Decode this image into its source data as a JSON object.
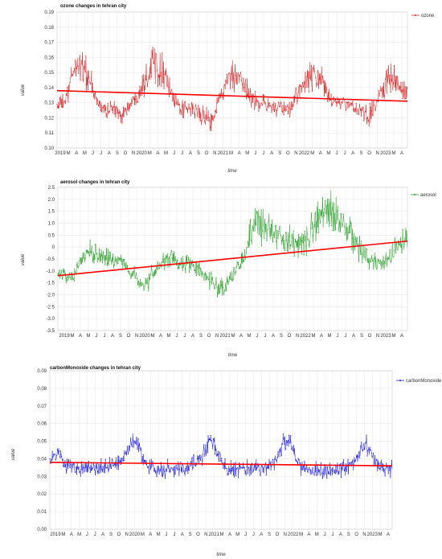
{
  "chart_data": [
    {
      "type": "line",
      "title": "ozone changes in tehran city",
      "xlabel": "time",
      "ylabel": "value",
      "legend": "top-right",
      "grid": true,
      "series": [
        {
          "name": "ozone",
          "color": "#d62728"
        }
      ],
      "ylim": [
        0.1,
        0.19
      ],
      "yticks": [
        "0.19",
        "0.18",
        "0.17",
        "0.16",
        "0.15",
        "0.14",
        "0.13",
        "0.12",
        "0.11",
        "0.10"
      ],
      "xticks": [
        "2019",
        "M",
        "A",
        "M",
        "J",
        "J",
        "A",
        "S",
        "O",
        "N",
        "2020",
        "M",
        "A",
        "M",
        "J",
        "J",
        "A",
        "S",
        "O",
        "N",
        "2021",
        "M",
        "A",
        "M",
        "J",
        "J",
        "A",
        "S",
        "O",
        "N",
        "2022",
        "M",
        "A",
        "M",
        "J",
        "J",
        "A",
        "S",
        "O",
        "N",
        "2023",
        "M",
        "A"
      ],
      "x_range": [
        "2018-12-01",
        "2023-05-15"
      ],
      "seasonal_profile": [
        [
          "2018-12-01",
          0.128
        ],
        [
          "2019-01-15",
          0.132
        ],
        [
          "2019-02-15",
          0.152
        ],
        [
          "2019-03-15",
          0.157
        ],
        [
          "2019-04-15",
          0.15
        ],
        [
          "2019-05-15",
          0.138
        ],
        [
          "2019-06-15",
          0.128
        ],
        [
          "2019-07-15",
          0.125
        ],
        [
          "2019-08-15",
          0.127
        ],
        [
          "2019-09-15",
          0.122
        ],
        [
          "2019-10-15",
          0.125
        ],
        [
          "2019-11-15",
          0.13
        ],
        [
          "2019-12-15",
          0.138
        ],
        [
          "2020-01-15",
          0.146
        ],
        [
          "2020-02-15",
          0.158
        ],
        [
          "2020-03-15",
          0.155
        ],
        [
          "2020-04-15",
          0.15
        ],
        [
          "2020-05-15",
          0.135
        ],
        [
          "2020-06-15",
          0.127
        ],
        [
          "2020-07-15",
          0.125
        ],
        [
          "2020-08-15",
          0.126
        ],
        [
          "2020-09-15",
          0.124
        ],
        [
          "2020-10-15",
          0.12
        ],
        [
          "2020-11-15",
          0.118
        ],
        [
          "2020-12-15",
          0.13
        ],
        [
          "2021-01-15",
          0.14
        ],
        [
          "2021-02-15",
          0.148
        ],
        [
          "2021-03-15",
          0.145
        ],
        [
          "2021-04-15",
          0.14
        ],
        [
          "2021-05-15",
          0.135
        ],
        [
          "2021-06-15",
          0.13
        ],
        [
          "2021-07-15",
          0.13
        ],
        [
          "2021-08-15",
          0.128
        ],
        [
          "2021-09-15",
          0.126
        ],
        [
          "2021-10-15",
          0.125
        ],
        [
          "2021-11-15",
          0.126
        ],
        [
          "2021-12-15",
          0.135
        ],
        [
          "2022-01-15",
          0.14
        ],
        [
          "2022-02-15",
          0.148
        ],
        [
          "2022-03-15",
          0.148
        ],
        [
          "2022-04-15",
          0.142
        ],
        [
          "2022-05-15",
          0.135
        ],
        [
          "2022-06-15",
          0.13
        ],
        [
          "2022-07-15",
          0.13
        ],
        [
          "2022-08-15",
          0.128
        ],
        [
          "2022-09-15",
          0.127
        ],
        [
          "2022-10-15",
          0.123
        ],
        [
          "2022-11-15",
          0.12
        ],
        [
          "2022-12-15",
          0.128
        ],
        [
          "2023-01-15",
          0.138
        ],
        [
          "2023-02-15",
          0.148
        ],
        [
          "2023-03-15",
          0.145
        ],
        [
          "2023-04-15",
          0.138
        ],
        [
          "2023-05-15",
          0.135
        ]
      ],
      "noise": 0.008,
      "trend": [
        [
          "2018-12-01",
          0.138
        ],
        [
          "2023-05-15",
          0.131
        ]
      ],
      "trend_color": "#ff0000"
    },
    {
      "type": "line",
      "title": "aerosol changes in tehran city",
      "xlabel": "time",
      "ylabel": "value",
      "legend": "top-right",
      "grid": true,
      "series": [
        {
          "name": "aerosol",
          "color": "#2ca02c"
        }
      ],
      "ylim": [
        -3.5,
        2.5
      ],
      "yticks": [
        "2.5",
        "2.0",
        "1.5",
        "1.0",
        "0.5",
        "0",
        "-0.5",
        "-1.0",
        "-1.5",
        "-2.0",
        "-2.5",
        "-3.0",
        "-3.5"
      ],
      "xticks": [
        "2019",
        "M",
        "A",
        "M",
        "J",
        "J",
        "A",
        "S",
        "O",
        "N",
        "2020",
        "M",
        "A",
        "M",
        "J",
        "J",
        "A",
        "S",
        "O",
        "N",
        "2021",
        "M",
        "A",
        "M",
        "J",
        "J",
        "A",
        "S",
        "O",
        "N",
        "2022",
        "M",
        "A",
        "M",
        "J",
        "J",
        "A",
        "S",
        "O",
        "N",
        "2023",
        "M",
        "A"
      ],
      "x_range": [
        "2018-12-01",
        "2023-05-15"
      ],
      "seasonal_profile": [
        [
          "2018-12-01",
          -1.0
        ],
        [
          "2019-01-15",
          -1.3
        ],
        [
          "2019-02-15",
          -1.2
        ],
        [
          "2019-03-15",
          -0.6
        ],
        [
          "2019-04-15",
          -0.3
        ],
        [
          "2019-05-15",
          -0.2
        ],
        [
          "2019-06-15",
          -0.3
        ],
        [
          "2019-07-15",
          -0.5
        ],
        [
          "2019-08-15",
          -0.6
        ],
        [
          "2019-09-15",
          -0.5
        ],
        [
          "2019-10-15",
          -0.8
        ],
        [
          "2019-11-15",
          -1.2
        ],
        [
          "2019-12-15",
          -1.5
        ],
        [
          "2020-01-15",
          -1.6
        ],
        [
          "2020-02-15",
          -1.2
        ],
        [
          "2020-03-15",
          -0.8
        ],
        [
          "2020-04-15",
          -0.6
        ],
        [
          "2020-05-15",
          -0.5
        ],
        [
          "2020-06-15",
          -0.8
        ],
        [
          "2020-07-15",
          -0.7
        ],
        [
          "2020-08-15",
          -0.8
        ],
        [
          "2020-09-15",
          -0.9
        ],
        [
          "2020-10-15",
          -1.2
        ],
        [
          "2020-11-15",
          -1.4
        ],
        [
          "2020-12-15",
          -1.8
        ],
        [
          "2021-01-15",
          -1.7
        ],
        [
          "2021-02-15",
          -1.3
        ],
        [
          "2021-03-15",
          -0.8
        ],
        [
          "2021-04-15",
          -0.5
        ],
        [
          "2021-05-15",
          0.6
        ],
        [
          "2021-06-15",
          1.0
        ],
        [
          "2021-07-15",
          1.1
        ],
        [
          "2021-08-15",
          0.8
        ],
        [
          "2021-09-15",
          0.5
        ],
        [
          "2021-10-15",
          0.4
        ],
        [
          "2021-11-15",
          0.3
        ],
        [
          "2021-12-15",
          0.1
        ],
        [
          "2022-01-15",
          0.2
        ],
        [
          "2022-02-15",
          0.5
        ],
        [
          "2022-03-15",
          1.0
        ],
        [
          "2022-04-15",
          1.3
        ],
        [
          "2022-05-15",
          1.6
        ],
        [
          "2022-06-15",
          1.4
        ],
        [
          "2022-07-15",
          0.9
        ],
        [
          "2022-08-15",
          0.6
        ],
        [
          "2022-09-15",
          0.2
        ],
        [
          "2022-10-15",
          -0.3
        ],
        [
          "2022-11-15",
          -0.5
        ],
        [
          "2022-12-15",
          -0.6
        ],
        [
          "2023-01-15",
          -0.7
        ],
        [
          "2023-02-15",
          -0.5
        ],
        [
          "2023-03-15",
          -0.2
        ],
        [
          "2023-04-15",
          0.1
        ],
        [
          "2023-05-15",
          0.3
        ]
      ],
      "noise": 0.45,
      "trend": [
        [
          "2018-12-01",
          -1.2
        ],
        [
          "2023-05-15",
          0.25
        ]
      ],
      "trend_color": "#ff0000"
    },
    {
      "type": "line",
      "title": "carbonMonoxide changes in tehran city",
      "xlabel": "time",
      "ylabel": "value",
      "legend": "top-right",
      "grid": true,
      "series": [
        {
          "name": "carbonMonoxide",
          "color": "#1f1fdf"
        }
      ],
      "ylim": [
        0.0,
        0.09
      ],
      "yticks": [
        "0.09",
        "0.08",
        "0.07",
        "0.06",
        "0.05",
        "0.04",
        "0.03",
        "0.02",
        "0.01",
        "0.00"
      ],
      "xticks": [
        "2019",
        "M",
        "A",
        "M",
        "J",
        "J",
        "A",
        "S",
        "O",
        "N",
        "2020",
        "M",
        "A",
        "M",
        "J",
        "J",
        "A",
        "S",
        "O",
        "N",
        "2021",
        "M",
        "A",
        "M",
        "J",
        "J",
        "A",
        "S",
        "O",
        "N",
        "2022",
        "M",
        "A",
        "M",
        "J",
        "J",
        "A",
        "S",
        "O",
        "N",
        "2023",
        "M",
        "A"
      ],
      "x_range": [
        "2018-12-01",
        "2023-05-15"
      ],
      "seasonal_profile": [
        [
          "2018-12-01",
          0.04
        ],
        [
          "2019-01-15",
          0.043
        ],
        [
          "2019-02-15",
          0.036
        ],
        [
          "2019-03-15",
          0.035
        ],
        [
          "2019-04-15",
          0.034
        ],
        [
          "2019-05-15",
          0.035
        ],
        [
          "2019-06-15",
          0.035
        ],
        [
          "2019-07-15",
          0.034
        ],
        [
          "2019-08-15",
          0.035
        ],
        [
          "2019-09-15",
          0.036
        ],
        [
          "2019-10-15",
          0.037
        ],
        [
          "2019-11-15",
          0.04
        ],
        [
          "2019-12-15",
          0.046
        ],
        [
          "2020-01-15",
          0.05
        ],
        [
          "2020-02-15",
          0.04
        ],
        [
          "2020-03-15",
          0.035
        ],
        [
          "2020-04-15",
          0.034
        ],
        [
          "2020-05-15",
          0.034
        ],
        [
          "2020-06-15",
          0.034
        ],
        [
          "2020-07-15",
          0.034
        ],
        [
          "2020-08-15",
          0.035
        ],
        [
          "2020-09-15",
          0.035
        ],
        [
          "2020-10-15",
          0.037
        ],
        [
          "2020-11-15",
          0.04
        ],
        [
          "2020-12-15",
          0.047
        ],
        [
          "2021-01-15",
          0.05
        ],
        [
          "2021-02-15",
          0.04
        ],
        [
          "2021-03-15",
          0.035
        ],
        [
          "2021-04-15",
          0.034
        ],
        [
          "2021-05-15",
          0.034
        ],
        [
          "2021-06-15",
          0.034
        ],
        [
          "2021-07-15",
          0.033
        ],
        [
          "2021-08-15",
          0.034
        ],
        [
          "2021-09-15",
          0.035
        ],
        [
          "2021-10-15",
          0.036
        ],
        [
          "2021-11-15",
          0.04
        ],
        [
          "2021-12-15",
          0.048
        ],
        [
          "2022-01-15",
          0.05
        ],
        [
          "2022-02-15",
          0.038
        ],
        [
          "2022-03-15",
          0.034
        ],
        [
          "2022-04-15",
          0.033
        ],
        [
          "2022-05-15",
          0.033
        ],
        [
          "2022-06-15",
          0.033
        ],
        [
          "2022-07-15",
          0.033
        ],
        [
          "2022-08-15",
          0.034
        ],
        [
          "2022-09-15",
          0.034
        ],
        [
          "2022-10-15",
          0.035
        ],
        [
          "2022-11-15",
          0.038
        ],
        [
          "2022-12-15",
          0.044
        ],
        [
          "2023-01-15",
          0.048
        ],
        [
          "2023-02-15",
          0.04
        ],
        [
          "2023-03-15",
          0.036
        ],
        [
          "2023-04-15",
          0.034
        ],
        [
          "2023-05-15",
          0.035
        ]
      ],
      "noise": 0.006,
      "trend": [
        [
          "2018-12-01",
          0.038
        ],
        [
          "2023-05-15",
          0.036
        ]
      ],
      "trend_color": "#ff0000"
    }
  ]
}
